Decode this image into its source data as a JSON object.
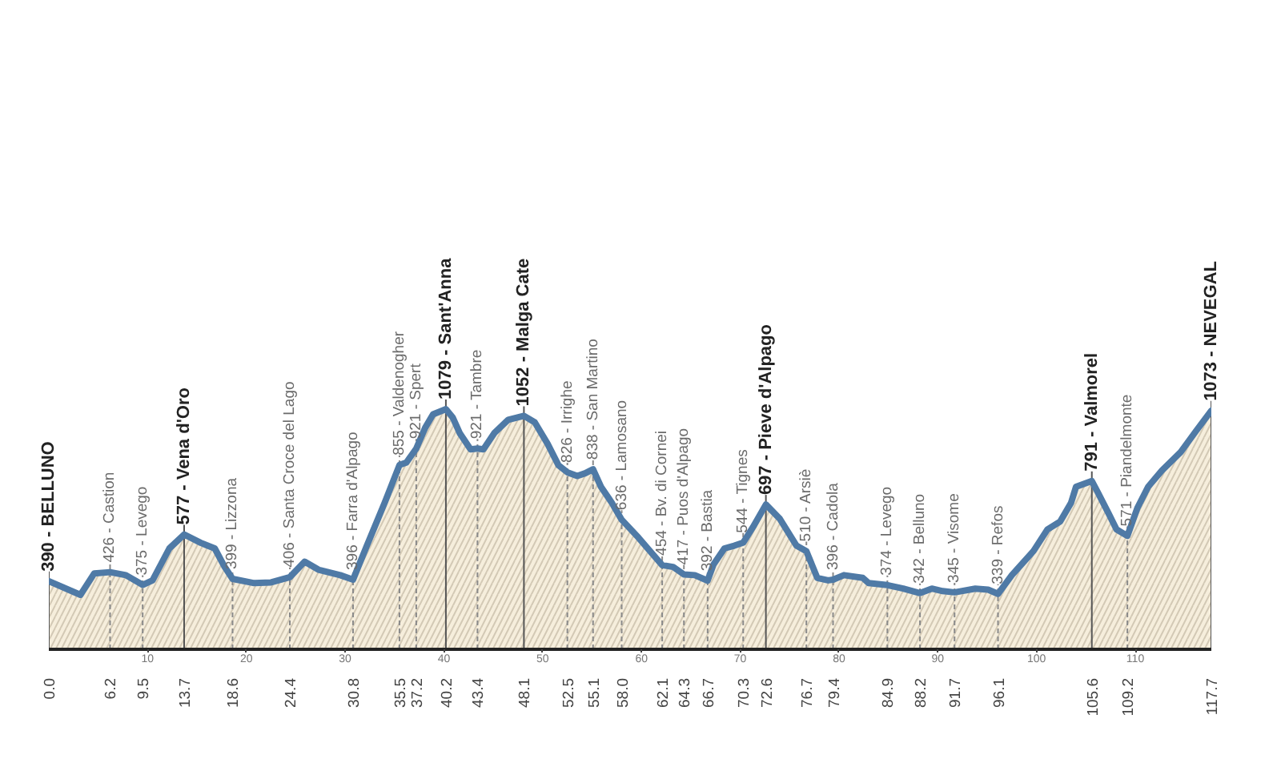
{
  "chart_data": {
    "type": "area",
    "color": "#4f7aa6",
    "x": [
      0,
      3.2,
      4.6,
      6.2,
      7.8,
      9.5,
      10.5,
      12.2,
      13.7,
      15.4,
      16.8,
      17.8,
      18.6,
      20.8,
      22.5,
      24.4,
      25.9,
      27.3,
      29.5,
      30.8,
      32.2,
      34.0,
      35.5,
      36.2,
      37.2,
      38.1,
      38.9,
      40.2,
      40.9,
      41.6,
      42.7,
      43.4,
      44.0,
      45.1,
      46.5,
      48.1,
      49.2,
      50.5,
      51.6,
      52.5,
      53.5,
      54.3,
      55.1,
      55.9,
      57.0,
      58.0,
      59.7,
      61.1,
      62.1,
      63.2,
      64.3,
      65.4,
      66.7,
      67.3,
      68.4,
      69.4,
      70.3,
      71.3,
      72.6,
      74.0,
      75.7,
      76.7,
      77.8,
      78.9,
      79.4,
      80.5,
      82.4,
      83.0,
      84.9,
      86.5,
      88.2,
      89.4,
      90.5,
      91.7,
      93.8,
      95.1,
      96.1,
      97.5,
      99.7,
      101.1,
      102.4,
      103.5,
      104.0,
      105.6,
      106.2,
      107.3,
      108.1,
      109.2,
      110.2,
      111.3,
      112.7,
      114.6,
      116.2,
      117.7
    ],
    "values": [
      390,
      335,
      421,
      426,
      414,
      375,
      393,
      521,
      577,
      543,
      521,
      447,
      399,
      382,
      385,
      406,
      468,
      436,
      414,
      396,
      532,
      704,
      855,
      865,
      921,
      1004,
      1058,
      1079,
      1045,
      983,
      918,
      921,
      918,
      983,
      1036,
      1052,
      1026,
      940,
      854,
      826,
      811,
      822,
      838,
      768,
      704,
      636,
      564,
      500,
      454,
      447,
      417,
      414,
      392,
      457,
      521,
      532,
      544,
      607,
      697,
      640,
      532,
      510,
      403,
      393,
      396,
      414,
      403,
      382,
      374,
      360,
      342,
      360,
      350,
      345,
      360,
      356,
      339,
      414,
      511,
      597,
      629,
      704,
      768,
      791,
      746,
      661,
      597,
      571,
      682,
      768,
      833,
      907,
      994,
      1073
    ],
    "value_labels": [
      null,
      null,
      null,
      "426 - Castion",
      null,
      "375 - Levego",
      null,
      null,
      null,
      null,
      null,
      null,
      "399 - Lizzona",
      null,
      null,
      "406 - Santa Croce del Lago",
      null,
      null,
      null,
      "396 - Farra d'Alpago",
      null,
      null,
      "855 - Valdenogher",
      null,
      "921 - Spert",
      null,
      null,
      null,
      null,
      null,
      null,
      "921 - Tambre",
      null,
      null,
      null,
      null,
      null,
      null,
      null,
      "826 - Irrighe",
      null,
      null,
      "838 - San Martino",
      null,
      null,
      "636 - Lamosano",
      null,
      null,
      "454 - Bv. di Cornei",
      null,
      "417 - Puos d'Alpago",
      null,
      "392 - Bastia",
      null,
      null,
      null,
      "544 - Tignes",
      null,
      null,
      null,
      null,
      "510 - Arsiè",
      null,
      null,
      "396 - Cadola",
      null,
      null,
      null,
      "374 - Levego",
      null,
      "342 - Belluno",
      null,
      null,
      "345 - Visome",
      null,
      null,
      "339 - Refos",
      null,
      null,
      null,
      null,
      null,
      null,
      null,
      null,
      null,
      null,
      "571 - Piandelmonte",
      null,
      null,
      null,
      null,
      null,
      null
    ],
    "annotations": [
      {
        "text": "390 - BELLUNO",
        "x": 0,
        "y": 390
      },
      {
        "text": "577 - Vena d'Oro",
        "x": 13.7,
        "y": 577
      },
      {
        "text": "1079 - Sant'Anna",
        "x": 40.2,
        "y": 1079
      },
      {
        "text": "1052 - Malga Cate",
        "x": 48.1,
        "y": 1052
      },
      {
        "text": "697 - Pieve d'Alpago",
        "x": 72.6,
        "y": 697
      },
      {
        "text": "791 - Valmorel",
        "x": 105.6,
        "y": 791
      },
      {
        "text": "1073 - NEVEGAL",
        "x": 117.7,
        "y": 1073
      }
    ],
    "xlim": [
      0,
      117.7
    ],
    "xticks": [
      {
        "value": 0,
        "label": "0.0"
      },
      6.2,
      9.5,
      13.7,
      18.6,
      24.4,
      30.8,
      35.5,
      37.2,
      40.2,
      43.4,
      48.1,
      52.5,
      55.1,
      {
        "value": 58,
        "label": "58.0"
      },
      62.1,
      64.3,
      66.7,
      70.3,
      72.6,
      76.7,
      79.4,
      84.9,
      88.2,
      91.7,
      96.1,
      105.6,
      109.2,
      117.7
    ],
    "x2lim": [
      0,
      117.7
    ],
    "x2ticks": [
      10,
      20,
      30,
      40,
      50,
      60,
      70,
      80,
      90,
      100,
      110
    ],
    "grid": "x",
    "tick_labels": "x"
  }
}
